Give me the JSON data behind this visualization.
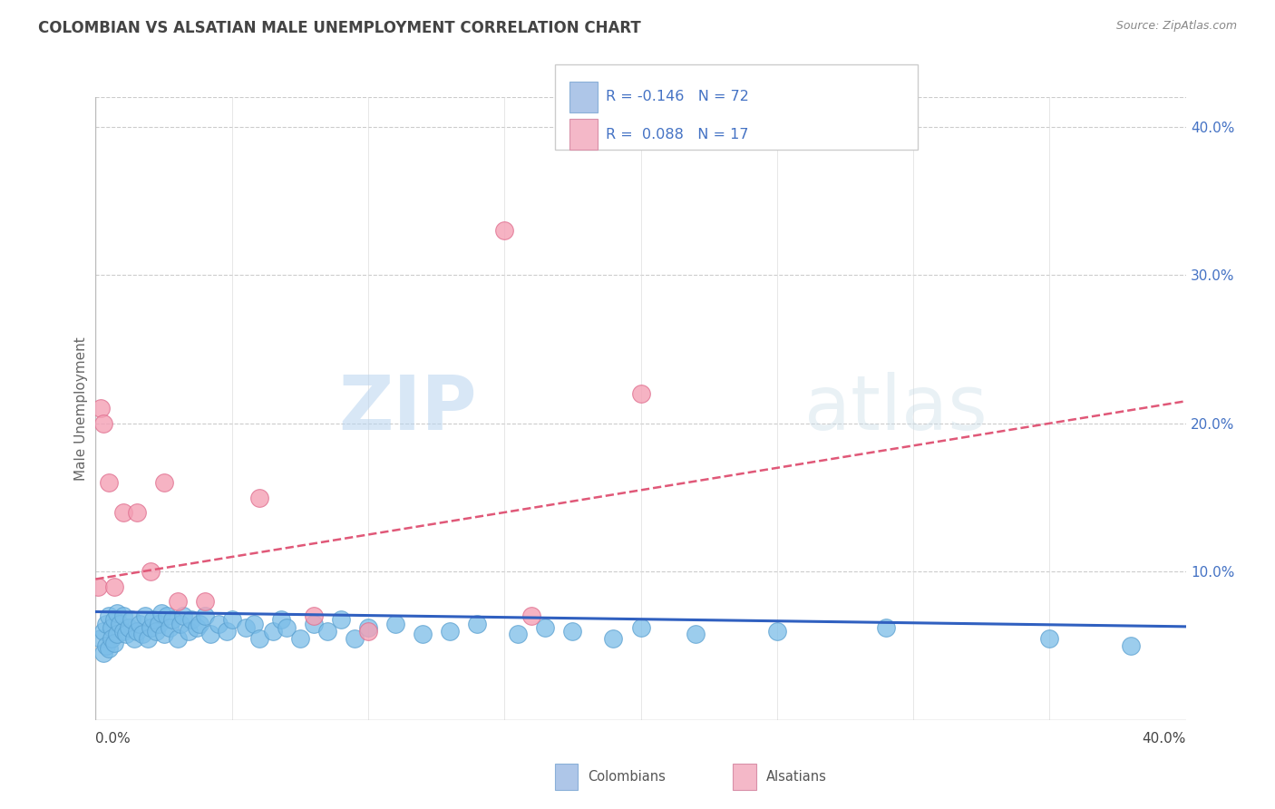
{
  "title": "COLOMBIAN VS ALSATIAN MALE UNEMPLOYMENT CORRELATION CHART",
  "source": "Source: ZipAtlas.com",
  "ylabel": "Male Unemployment",
  "watermark_zip": "ZIP",
  "watermark_atlas": "atlas",
  "xlim": [
    0.0,
    0.4
  ],
  "ylim": [
    0.0,
    0.42
  ],
  "colombian_color": "#7bbde8",
  "colombian_edge": "#5aa0d0",
  "alsatian_color": "#f4a0b5",
  "alsatian_edge": "#e07090",
  "trend_colombian_color": "#3060c0",
  "trend_alsatian_color": "#e05878",
  "background_color": "#ffffff",
  "grid_color": "#cccccc",
  "title_color": "#444444",
  "source_color": "#888888",
  "ytick_color": "#4472c4",
  "r_colombian_label": "R = -0.146",
  "n_colombian_label": "N = 72",
  "r_alsatian_label": "R =  0.088",
  "n_alsatian_label": "N = 17",
  "legend_patch_col": "#aec6e8",
  "legend_patch_als": "#f4b8c8",
  "colombian_x": [
    0.002,
    0.003,
    0.003,
    0.004,
    0.004,
    0.005,
    0.005,
    0.006,
    0.006,
    0.007,
    0.007,
    0.008,
    0.008,
    0.009,
    0.01,
    0.01,
    0.011,
    0.012,
    0.013,
    0.014,
    0.015,
    0.016,
    0.017,
    0.018,
    0.019,
    0.02,
    0.021,
    0.022,
    0.023,
    0.024,
    0.025,
    0.026,
    0.027,
    0.028,
    0.03,
    0.031,
    0.032,
    0.034,
    0.035,
    0.037,
    0.038,
    0.04,
    0.042,
    0.045,
    0.048,
    0.05,
    0.055,
    0.058,
    0.06,
    0.065,
    0.068,
    0.07,
    0.075,
    0.08,
    0.085,
    0.09,
    0.095,
    0.1,
    0.11,
    0.12,
    0.13,
    0.14,
    0.155,
    0.165,
    0.175,
    0.19,
    0.2,
    0.22,
    0.25,
    0.29,
    0.35,
    0.38
  ],
  "colombian_y": [
    0.055,
    0.06,
    0.045,
    0.065,
    0.05,
    0.07,
    0.048,
    0.062,
    0.055,
    0.068,
    0.052,
    0.072,
    0.058,
    0.065,
    0.06,
    0.07,
    0.058,
    0.062,
    0.068,
    0.055,
    0.06,
    0.065,
    0.058,
    0.07,
    0.055,
    0.062,
    0.068,
    0.06,
    0.065,
    0.072,
    0.058,
    0.07,
    0.062,
    0.068,
    0.055,
    0.065,
    0.07,
    0.06,
    0.068,
    0.062,
    0.065,
    0.07,
    0.058,
    0.065,
    0.06,
    0.068,
    0.062,
    0.065,
    0.055,
    0.06,
    0.068,
    0.062,
    0.055,
    0.065,
    0.06,
    0.068,
    0.055,
    0.062,
    0.065,
    0.058,
    0.06,
    0.065,
    0.058,
    0.062,
    0.06,
    0.055,
    0.062,
    0.058,
    0.06,
    0.062,
    0.055,
    0.05
  ],
  "alsatian_x": [
    0.001,
    0.002,
    0.003,
    0.005,
    0.007,
    0.01,
    0.015,
    0.02,
    0.025,
    0.03,
    0.04,
    0.06,
    0.08,
    0.1,
    0.15,
    0.2,
    0.16
  ],
  "alsatian_y": [
    0.09,
    0.21,
    0.2,
    0.16,
    0.09,
    0.14,
    0.14,
    0.1,
    0.16,
    0.08,
    0.08,
    0.15,
    0.07,
    0.06,
    0.33,
    0.22,
    0.07
  ]
}
